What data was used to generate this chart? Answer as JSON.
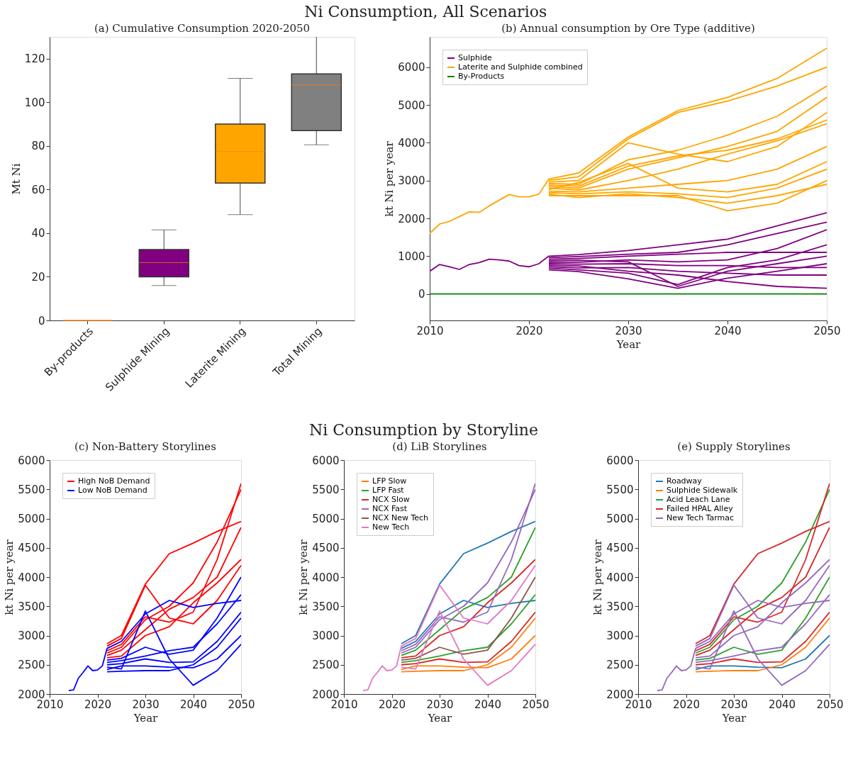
{
  "chart_data": [
    {
      "type": "box",
      "title": "(a) Cumulative Consumption 2020-2050",
      "ylabel": "Mt Ni",
      "annotations": [
        "Ni Consumption, All Scenarios"
      ],
      "categories": [
        "By-products",
        "Sulphide Mining",
        "Laterite Mining",
        "Total Mining"
      ],
      "colors": [
        "#ff7f0e",
        "#800080",
        "#ffa500",
        "#808080"
      ],
      "boxes": [
        {
          "low": 0,
          "q1": 0,
          "median": 0,
          "q3": 0,
          "high": 0
        },
        {
          "low": 16,
          "q1": 20,
          "median": 26.5,
          "q3": 32.5,
          "high": 41.5
        },
        {
          "low": 48.5,
          "q1": 63,
          "median": 77.5,
          "q3": 90,
          "high": 111
        },
        {
          "low": 80.5,
          "q1": 87,
          "median": 108,
          "q3": 113,
          "high": null
        }
      ],
      "ylim": [
        0,
        130
      ],
      "yticks": [
        0,
        20,
        40,
        60,
        80,
        100,
        120
      ],
      "grid": false
    },
    {
      "type": "line",
      "title": "(b) Annual consumption by Ore Type (additive)",
      "xlabel": "Year",
      "ylabel": "kt Ni per year",
      "legend": "top left",
      "grid": false,
      "line_style": "solid",
      "x": [
        2022,
        2025,
        2030,
        2035,
        2040,
        2045,
        2050
      ],
      "xlim": [
        2010,
        2050
      ],
      "xticks": [
        2010,
        2020,
        2030,
        2040,
        2050
      ],
      "ylim": [
        -700,
        6800
      ],
      "yticks": [
        0,
        1000,
        2000,
        3000,
        4000,
        5000,
        6000
      ],
      "series": [
        {
          "name": "Sulphide",
          "color": "#800080",
          "x": [
            2010,
            2011,
            2012,
            2013,
            2014,
            2015,
            2016,
            2017,
            2018,
            2019,
            2020,
            2021,
            2022,
            2025,
            2030,
            2035,
            2040,
            2045,
            2050
          ],
          "values": [
            600,
            780,
            720,
            650,
            780,
            830,
            920,
            900,
            870,
            750,
            720,
            800,
            1000,
            1040,
            1150,
            1300,
            1450,
            1800,
            2150
          ]
        },
        {
          "color": "#800080",
          "values": [
            960,
            990,
            1050,
            1100,
            1300,
            1600,
            1900
          ]
        },
        {
          "color": "#800080",
          "values": [
            920,
            940,
            1000,
            1050,
            1100,
            1100,
            1100
          ]
        },
        {
          "color": "#800080",
          "values": [
            840,
            840,
            900,
            850,
            900,
            1200,
            1700
          ]
        },
        {
          "color": "#800080",
          "values": [
            800,
            790,
            800,
            750,
            750,
            700,
            700
          ]
        },
        {
          "color": "#800080",
          "values": [
            720,
            690,
            700,
            600,
            550,
            500,
            500
          ]
        },
        {
          "color": "#800080",
          "values": [
            680,
            640,
            550,
            250,
            700,
            900,
            1300
          ]
        },
        {
          "color": "#800080",
          "values": [
            640,
            590,
            400,
            150,
            420,
            600,
            800
          ]
        },
        {
          "color": "#800080",
          "values": [
            880,
            890,
            850,
            200,
            600,
            800,
            1000
          ]
        },
        {
          "color": "#800080",
          "values": [
            760,
            740,
            600,
            500,
            330,
            200,
            150
          ]
        },
        {
          "name": "Laterite and Sulphide combined",
          "color": "#ffa500",
          "x": [
            2010,
            2011,
            2012,
            2013,
            2014,
            2015,
            2016,
            2017,
            2018,
            2019,
            2020,
            2021,
            2022,
            2025,
            2030,
            2035,
            2040,
            2045,
            2050
          ],
          "values": [
            1600,
            1850,
            1920,
            2050,
            2170,
            2160,
            2330,
            2480,
            2630,
            2570,
            2570,
            2640,
            3040,
            3200,
            4150,
            4850,
            5200,
            5700,
            6500
          ]
        },
        {
          "color": "#ffa500",
          "values": [
            3000,
            3100,
            4100,
            4800,
            5100,
            5500,
            6000
          ]
        },
        {
          "color": "#ffa500",
          "values": [
            2960,
            3000,
            4000,
            3700,
            3500,
            3900,
            4800
          ]
        },
        {
          "color": "#ffa500",
          "values": [
            2920,
            2900,
            3550,
            3800,
            4200,
            4700,
            5500
          ]
        },
        {
          "color": "#ffa500",
          "values": [
            2880,
            2850,
            3380,
            3650,
            3800,
            4100,
            4600
          ]
        },
        {
          "color": "#ffa500",
          "values": [
            2840,
            2800,
            3300,
            3600,
            3900,
            4300,
            5200
          ]
        },
        {
          "color": "#ffa500",
          "values": [
            2800,
            2750,
            3000,
            3300,
            3700,
            4050,
            4500
          ]
        },
        {
          "color": "#ffa500",
          "values": [
            2720,
            2700,
            2800,
            2900,
            3000,
            3300,
            3900
          ]
        },
        {
          "color": "#ffa500",
          "values": [
            2680,
            2650,
            2700,
            2650,
            2550,
            2800,
            3300
          ]
        },
        {
          "color": "#ffa500",
          "values": [
            2600,
            2600,
            2600,
            2600,
            2200,
            2400,
            3000
          ]
        },
        {
          "color": "#ffa500",
          "values": [
            2760,
            2950,
            3450,
            2800,
            2700,
            2900,
            3500
          ]
        },
        {
          "color": "#ffa500",
          "values": [
            2640,
            2550,
            2650,
            2550,
            2400,
            2600,
            2900
          ]
        },
        {
          "name": "By-Products",
          "color": "#008000",
          "x": [
            2010,
            2020,
            2030,
            2040,
            2050
          ],
          "values": [
            0,
            0,
            0,
            0,
            0
          ]
        }
      ]
    },
    {
      "type": "line",
      "title": "(c) Non-Battery Storylines",
      "xlabel": "Year",
      "ylabel": "kt Ni per year",
      "legend": "top left",
      "grid": false,
      "line_style": "solid",
      "annotations": [
        "Ni Consumption by Storyline"
      ],
      "x": [
        2022,
        2025,
        2030,
        2035,
        2040,
        2045,
        2050
      ],
      "xlim": [
        2010,
        2050
      ],
      "xticks": [
        2010,
        2020,
        2030,
        2040,
        2050
      ],
      "ylim": [
        2000,
        6000
      ],
      "yticks": [
        2000,
        2500,
        3000,
        3500,
        4000,
        4500,
        5000,
        5500,
        6000
      ],
      "series": [
        {
          "name": "High NoB Demand",
          "color": "#ff0000",
          "values": [
            2860,
            3000,
            3880,
            4400,
            4580,
            4780,
            4950
          ]
        },
        {
          "color": "#ff0000",
          "values": [
            2740,
            2850,
            3320,
            3230,
            3400,
            4300,
            5600
          ]
        },
        {
          "color": "#ff0000",
          "values": [
            2700,
            2800,
            3270,
            3500,
            3900,
            4600,
            5500
          ]
        },
        {
          "color": "#ff0000",
          "values": [
            2660,
            2750,
            3100,
            3450,
            3650,
            4000,
            4850
          ]
        },
        {
          "color": "#ff0000",
          "values": [
            2820,
            2950,
            3860,
            3300,
            3200,
            3600,
            4200
          ]
        },
        {
          "color": "#ff0000",
          "values": [
            2620,
            2650,
            3000,
            3150,
            3560,
            3900,
            4300
          ]
        },
        {
          "name": "Low NoB Demand",
          "color": "#0000ff",
          "x": [
            2014,
            2015,
            2016,
            2017,
            2018,
            2019,
            2020,
            2021,
            2022,
            2025,
            2030,
            2035,
            2040,
            2045,
            2050
          ],
          "values": [
            2060,
            2070,
            2270,
            2370,
            2480,
            2400,
            2410,
            2480,
            2780,
            2900,
            3370,
            3600,
            3480,
            3550,
            3600
          ]
        },
        {
          "color": "#0000ff",
          "values": [
            2580,
            2610,
            2800,
            2680,
            2750,
            3300,
            4000
          ]
        },
        {
          "color": "#0000ff",
          "values": [
            2540,
            2570,
            2650,
            2740,
            2800,
            3200,
            3700
          ]
        },
        {
          "color": "#0000ff",
          "values": [
            2500,
            2520,
            2600,
            2540,
            2550,
            2900,
            3400
          ]
        },
        {
          "color": "#0000ff",
          "values": [
            2420,
            2480,
            2480,
            2460,
            2450,
            2600,
            3000
          ]
        },
        {
          "color": "#0000ff",
          "values": [
            2460,
            2430,
            3420,
            2600,
            2150,
            2400,
            2850
          ]
        },
        {
          "color": "#0000ff",
          "values": [
            2380,
            2390,
            2400,
            2400,
            2500,
            2800,
            3300
          ]
        }
      ]
    },
    {
      "type": "line",
      "title": "(d) LiB Storylines",
      "xlabel": "Year",
      "ylabel": "kt Ni per year",
      "legend": "top left",
      "grid": false,
      "line_style": "solid",
      "x": [
        2022,
        2025,
        2030,
        2035,
        2040,
        2045,
        2050
      ],
      "xlim": [
        2010,
        2050
      ],
      "xticks": [
        2010,
        2020,
        2030,
        2040,
        2050
      ],
      "ylim": [
        2000,
        6000
      ],
      "yticks": [
        2000,
        2500,
        3000,
        3500,
        4000,
        4500,
        5000,
        5500,
        6000
      ],
      "series": [
        {
          "color": "#1f77b4",
          "values": [
            2860,
            3000,
            3880,
            4400,
            4580,
            4780,
            4950
          ]
        },
        {
          "color": "#1f77b4",
          "values": [
            2780,
            2900,
            3370,
            3600,
            3480,
            3550,
            3600
          ]
        },
        {
          "name": "LFP Slow",
          "color": "#ff7f0e",
          "values": [
            2420,
            2480,
            2480,
            2460,
            2450,
            2600,
            3000
          ]
        },
        {
          "color": "#ff7f0e",
          "values": [
            2380,
            2390,
            2400,
            2400,
            2500,
            2800,
            3300
          ]
        },
        {
          "name": "LFP Fast",
          "color": "#2ca02c",
          "values": [
            2660,
            2750,
            3100,
            3450,
            3650,
            4000,
            4850
          ]
        },
        {
          "color": "#2ca02c",
          "values": [
            2540,
            2570,
            2650,
            2740,
            2800,
            3200,
            3700
          ]
        },
        {
          "name": "NCX Slow",
          "color": "#d62728",
          "values": [
            2620,
            2650,
            3000,
            3150,
            3560,
            3900,
            4300
          ]
        },
        {
          "color": "#d62728",
          "values": [
            2500,
            2520,
            2600,
            2540,
            2550,
            2900,
            3400
          ]
        },
        {
          "name": "NCX Fast",
          "color": "#9467bd",
          "values": [
            2740,
            2850,
            3320,
            3230,
            3400,
            4300,
            5600
          ]
        },
        {
          "color": "#9467bd",
          "values": [
            2700,
            2800,
            3270,
            3500,
            3900,
            4600,
            5500
          ]
        },
        {
          "name": "NCX New Tech",
          "color": "#8c564b",
          "values": [
            2580,
            2610,
            2800,
            2680,
            2750,
            3300,
            4000
          ]
        },
        {
          "name": "New Tech",
          "color": "#e377c2",
          "x": [
            2014,
            2015,
            2016,
            2017,
            2018,
            2019,
            2020,
            2021,
            2022,
            2025,
            2030,
            2035,
            2040,
            2045,
            2050
          ],
          "values": [
            2060,
            2070,
            2270,
            2370,
            2480,
            2400,
            2410,
            2480,
            2820,
            2950,
            3860,
            3300,
            3200,
            3600,
            4200
          ]
        },
        {
          "color": "#e377c2",
          "values": [
            2460,
            2430,
            3420,
            2600,
            2150,
            2400,
            2850
          ]
        }
      ]
    },
    {
      "type": "line",
      "title": "(e) Supply Storylines",
      "xlabel": "Year",
      "ylabel": "kt Ni per year",
      "legend": "top left",
      "grid": false,
      "line_style": "solid",
      "x": [
        2022,
        2025,
        2030,
        2035,
        2040,
        2045,
        2050
      ],
      "xlim": [
        2010,
        2050
      ],
      "xticks": [
        2010,
        2020,
        2030,
        2040,
        2050
      ],
      "ylim": [
        2000,
        6000
      ],
      "yticks": [
        2000,
        2500,
        3000,
        3500,
        4000,
        4500,
        5000,
        5500,
        6000
      ],
      "series": [
        {
          "name": "Roadway",
          "color": "#1f77b4",
          "values": [
            2420,
            2480,
            2480,
            2460,
            2450,
            2600,
            3000
          ]
        },
        {
          "name": "Sulphide Sidewalk",
          "color": "#ff7f0e",
          "values": [
            2380,
            2390,
            2400,
            2400,
            2500,
            2800,
            3300
          ]
        },
        {
          "name": "Acid Leach Lane",
          "color": "#2ca02c",
          "values": [
            2700,
            2800,
            3270,
            3500,
            3900,
            4600,
            5500
          ]
        },
        {
          "color": "#2ca02c",
          "values": [
            2580,
            2610,
            2800,
            2680,
            2750,
            3300,
            4000
          ]
        },
        {
          "name": "Failed HPAL Alley",
          "color": "#d62728",
          "values": [
            2860,
            3000,
            3880,
            4400,
            4580,
            4780,
            4950
          ]
        },
        {
          "color": "#d62728",
          "values": [
            2740,
            2850,
            3320,
            3230,
            3400,
            4300,
            5600
          ]
        },
        {
          "color": "#d62728",
          "values": [
            2660,
            2750,
            3100,
            3450,
            3650,
            4000,
            4850
          ]
        },
        {
          "color": "#d62728",
          "values": [
            2500,
            2520,
            2600,
            2540,
            2550,
            2900,
            3400
          ]
        },
        {
          "name": "New Tech Tarmac",
          "color": "#9467bd",
          "x": [
            2014,
            2015,
            2016,
            2017,
            2018,
            2019,
            2020,
            2021,
            2022,
            2025,
            2030,
            2035,
            2040,
            2045,
            2050
          ],
          "values": [
            2060,
            2070,
            2270,
            2370,
            2480,
            2400,
            2410,
            2480,
            2780,
            2900,
            3370,
            3600,
            3480,
            3550,
            3600
          ]
        },
        {
          "color": "#9467bd",
          "values": [
            2820,
            2950,
            3860,
            3300,
            3200,
            3600,
            4200
          ]
        },
        {
          "color": "#9467bd",
          "values": [
            2620,
            2650,
            3000,
            3150,
            3560,
            3900,
            4300
          ]
        },
        {
          "color": "#9467bd",
          "values": [
            2540,
            2570,
            2650,
            2740,
            2800,
            3200,
            3700
          ]
        },
        {
          "color": "#9467bd",
          "values": [
            2460,
            2430,
            3420,
            2600,
            2150,
            2400,
            2850
          ]
        }
      ]
    }
  ]
}
